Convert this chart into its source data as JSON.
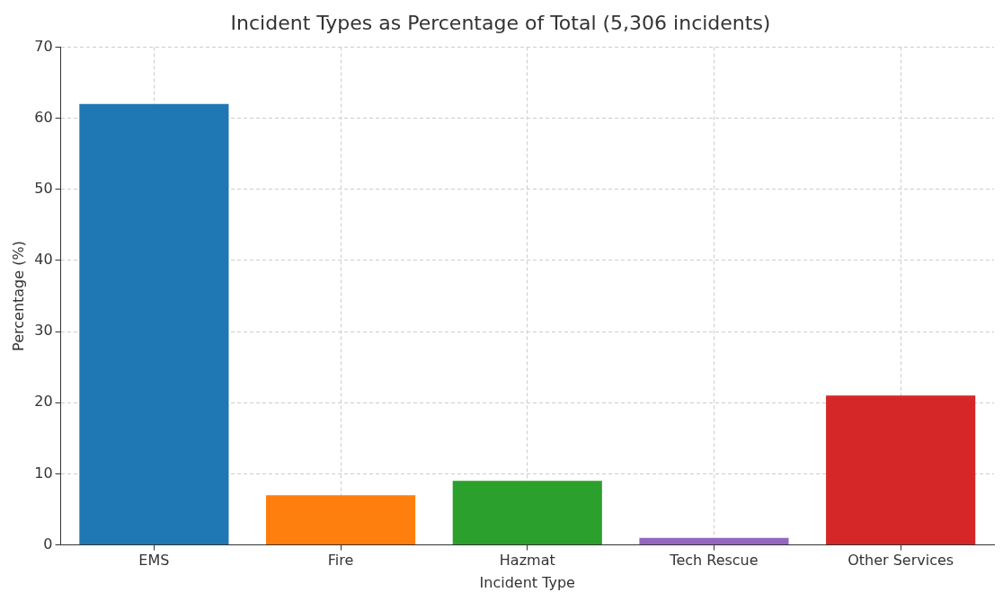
{
  "chart_data": {
    "type": "bar",
    "title": "Incident Types as Percentage of Total (5,306 incidents)",
    "xlabel": "Incident Type",
    "ylabel": "Percentage (%)",
    "categories": [
      "EMS",
      "Fire",
      "Hazmat",
      "Tech Rescue",
      "Other Services"
    ],
    "values": [
      62,
      7,
      9,
      1,
      21
    ],
    "colors": [
      "#1f77b4",
      "#ff7f0e",
      "#2ca02c",
      "#9467bd",
      "#d62728"
    ],
    "ylim": [
      0,
      70
    ],
    "yticks": [
      0,
      10,
      20,
      30,
      40,
      50,
      60,
      70
    ],
    "grid": true
  }
}
